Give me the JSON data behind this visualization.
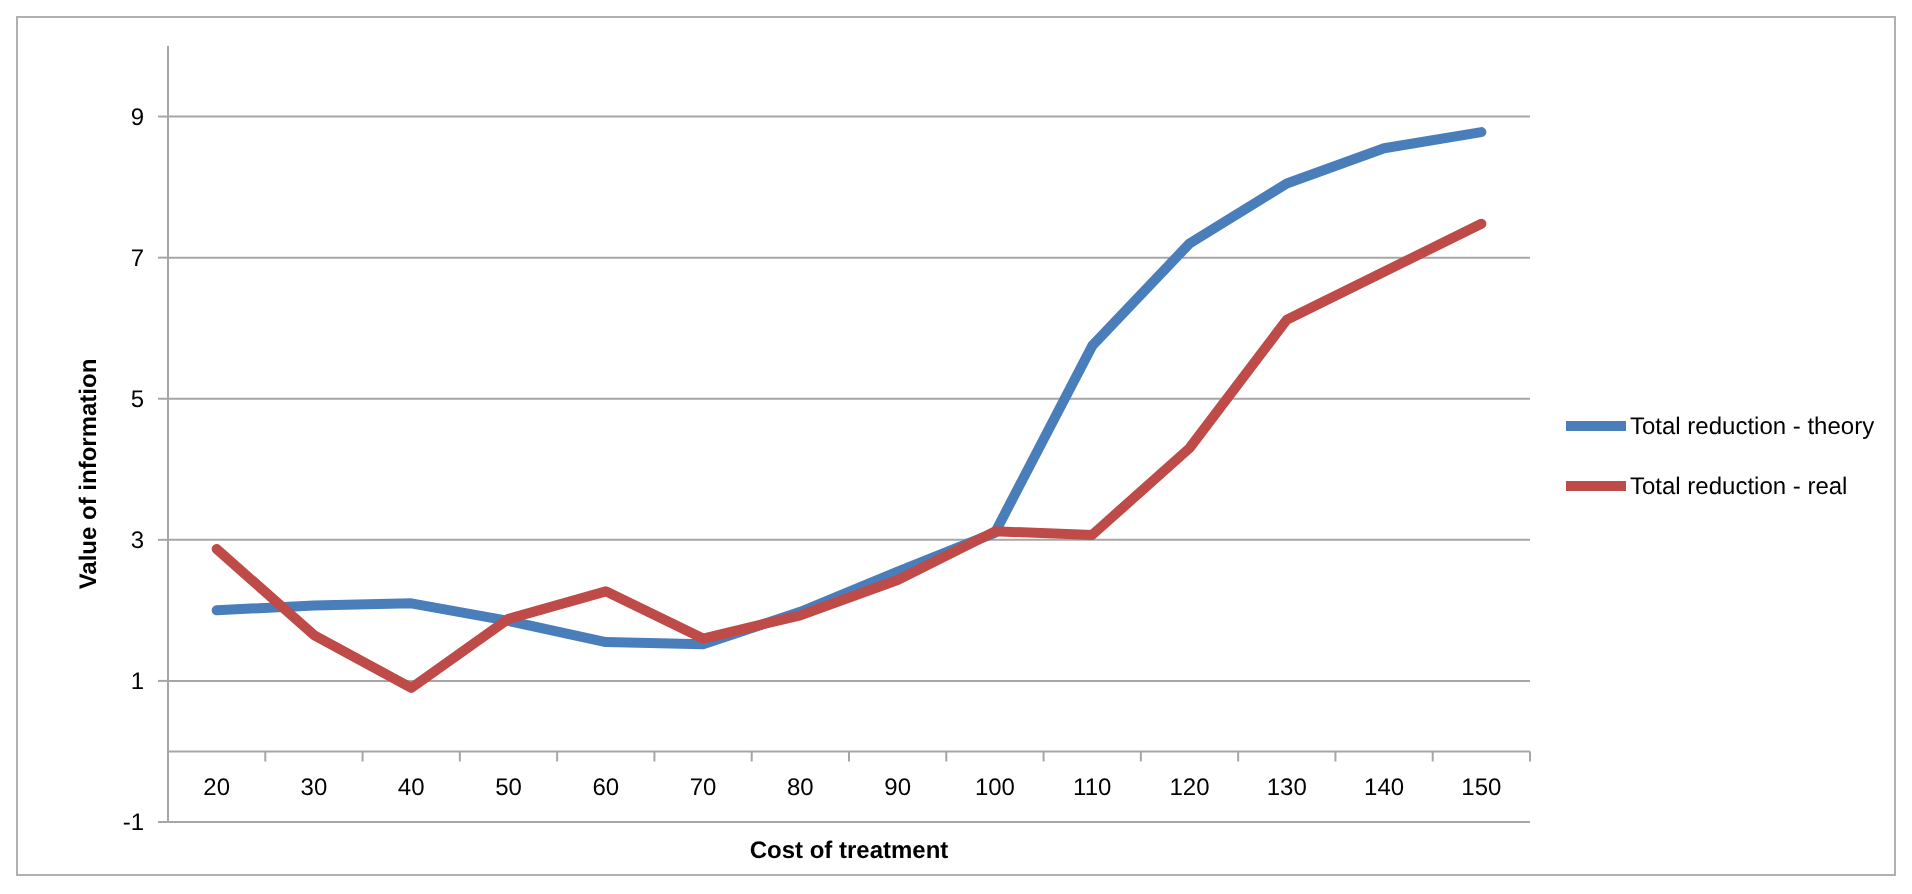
{
  "chart_data": {
    "type": "line",
    "xlabel": "Cost of treatment",
    "ylabel": "Value of information",
    "categories": [
      "20",
      "30",
      "40",
      "50",
      "60",
      "70",
      "80",
      "90",
      "100",
      "110",
      "120",
      "130",
      "140",
      "150"
    ],
    "series": [
      {
        "name": "Total reduction - theory",
        "color": "#4a7ebb",
        "values": [
          2.0,
          2.07,
          2.1,
          1.85,
          1.55,
          1.52,
          1.98,
          2.55,
          3.1,
          5.75,
          7.2,
          8.05,
          8.55,
          8.78
        ]
      },
      {
        "name": "Total reduction - real",
        "color": "#be4b48",
        "values": [
          2.87,
          1.65,
          0.9,
          1.88,
          2.27,
          1.6,
          1.93,
          2.43,
          3.12,
          3.07,
          4.3,
          6.12,
          6.8,
          7.48
        ]
      }
    ],
    "ylim": [
      -1,
      10
    ],
    "yticks": [
      -1,
      1,
      3,
      5,
      7,
      9
    ],
    "grid": "y",
    "legend": "right",
    "marker": "none",
    "line_style": "solid"
  }
}
